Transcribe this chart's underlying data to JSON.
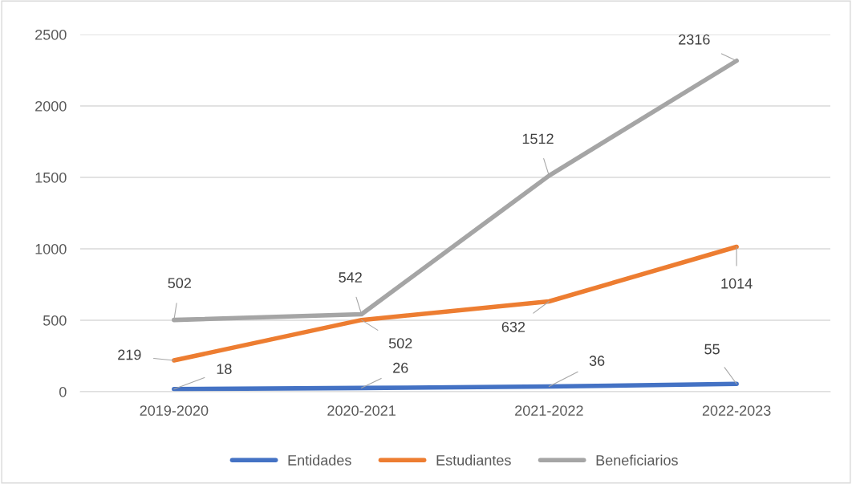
{
  "chart_data": {
    "type": "line",
    "categories": [
      "2019-2020",
      "2020-2021",
      "2021-2022",
      "2022-2023"
    ],
    "series": [
      {
        "name": "Entidades",
        "color": "#4472c4",
        "values": [
          18,
          26,
          36,
          55
        ]
      },
      {
        "name": "Estudiantes",
        "color": "#ed7d31",
        "values": [
          219,
          502,
          632,
          1014
        ]
      },
      {
        "name": "Beneficiarios",
        "color": "#a5a5a5",
        "values": [
          502,
          542,
          1512,
          2316
        ]
      }
    ],
    "ylim": [
      0,
      2500
    ],
    "yticks": [
      0,
      500,
      1000,
      1500,
      2000,
      2500
    ],
    "grid": "y",
    "legend": "bottom",
    "data_labels": true,
    "marker": "none",
    "line_style": "solid"
  }
}
